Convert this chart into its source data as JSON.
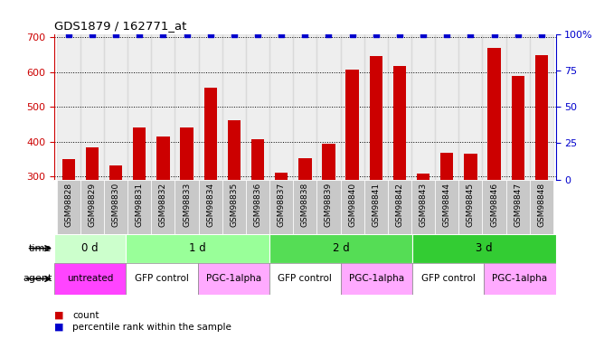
{
  "title": "GDS1879 / 162771_at",
  "samples": [
    "GSM98828",
    "GSM98829",
    "GSM98830",
    "GSM98831",
    "GSM98832",
    "GSM98833",
    "GSM98834",
    "GSM98835",
    "GSM98836",
    "GSM98837",
    "GSM98838",
    "GSM98839",
    "GSM98840",
    "GSM98841",
    "GSM98842",
    "GSM98843",
    "GSM98844",
    "GSM98845",
    "GSM98846",
    "GSM98847",
    "GSM98848"
  ],
  "counts": [
    348,
    382,
    332,
    440,
    415,
    440,
    555,
    462,
    407,
    310,
    352,
    393,
    608,
    645,
    618,
    307,
    368,
    366,
    670,
    588,
    648
  ],
  "percentile": 100,
  "ylim_left": [
    290,
    710
  ],
  "ylim_right": [
    0,
    100
  ],
  "yticks_left": [
    300,
    400,
    500,
    600,
    700
  ],
  "yticks_right": [
    0,
    25,
    50,
    75,
    100
  ],
  "bar_color": "#cc0000",
  "dot_color": "#0000cc",
  "grid_color": "#000000",
  "time_groups": [
    {
      "label": "0 d",
      "start": 0,
      "end": 3,
      "color": "#ccffcc"
    },
    {
      "label": "1 d",
      "start": 3,
      "end": 9,
      "color": "#99ff99"
    },
    {
      "label": "2 d",
      "start": 9,
      "end": 15,
      "color": "#55dd55"
    },
    {
      "label": "3 d",
      "start": 15,
      "end": 21,
      "color": "#33cc33"
    }
  ],
  "agent_groups": [
    {
      "label": "untreated",
      "start": 0,
      "end": 3,
      "color": "#ff44ff"
    },
    {
      "label": "GFP control",
      "start": 3,
      "end": 6,
      "color": "#ffffff"
    },
    {
      "label": "PGC-1alpha",
      "start": 6,
      "end": 9,
      "color": "#ffaaff"
    },
    {
      "label": "GFP control",
      "start": 9,
      "end": 12,
      "color": "#ffffff"
    },
    {
      "label": "PGC-1alpha",
      "start": 12,
      "end": 15,
      "color": "#ffaaff"
    },
    {
      "label": "GFP control",
      "start": 15,
      "end": 18,
      "color": "#ffffff"
    },
    {
      "label": "PGC-1alpha",
      "start": 18,
      "end": 21,
      "color": "#ffaaff"
    }
  ],
  "legend_count_color": "#cc0000",
  "legend_dot_color": "#0000cc",
  "left_axis_color": "#cc0000",
  "right_axis_color": "#0000cc",
  "bg_color": "#ffffff",
  "sample_bg_color": "#c8c8c8",
  "bar_width": 0.55,
  "sample_label_fontsize": 6.5,
  "row_label_fontsize": 8,
  "time_label_fontsize": 8.5,
  "agent_label_fontsize": 7.5
}
